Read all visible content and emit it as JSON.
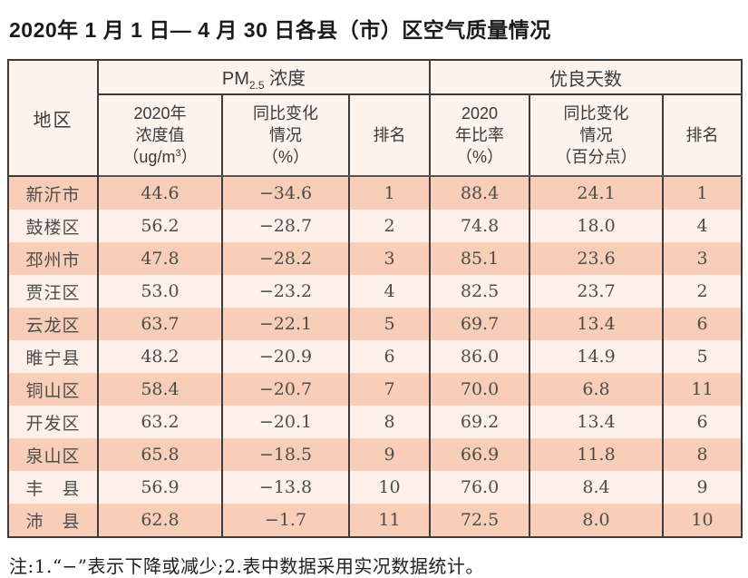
{
  "page": {
    "title": "2020年 1 月 1 日— 4 月 30 日各县（市）区空气质量情况"
  },
  "table": {
    "header": {
      "region": "地区",
      "pm_group": {
        "prefix": "PM",
        "sub": "2.5",
        "suffix": " 浓度"
      },
      "good_group": "优良天数",
      "pm_value": {
        "line1": "2020年",
        "line2": "浓度值",
        "line3_pre": "（ug/m",
        "line3_sup": "3",
        "line3_post": "）"
      },
      "pm_change": {
        "line1": "同比变化",
        "line2": "情况",
        "line3": "（%）"
      },
      "pm_rank": "排名",
      "good_ratio": {
        "line1": "2020",
        "line2": "年比率",
        "line3": "（%）"
      },
      "good_change": {
        "line1": "同比变化",
        "line2": "情况",
        "line3": "（百分点）"
      },
      "good_rank": "排名"
    },
    "rows": [
      [
        "新沂市",
        "44.6",
        "−34.6",
        "1",
        "88.4",
        "24.1",
        "1"
      ],
      [
        "鼓楼区",
        "56.2",
        "−28.7",
        "2",
        "74.8",
        "18.0",
        "4"
      ],
      [
        "邳州市",
        "47.8",
        "−28.2",
        "3",
        "85.1",
        "23.6",
        "3"
      ],
      [
        "贾汪区",
        "53.0",
        "−23.2",
        "4",
        "82.5",
        "23.7",
        "2"
      ],
      [
        "云龙区",
        "63.7",
        "−22.1",
        "5",
        "69.7",
        "13.4",
        "6"
      ],
      [
        "睢宁县",
        "48.2",
        "−20.9",
        "6",
        "86.0",
        "14.9",
        "5"
      ],
      [
        "铜山区",
        "58.4",
        "−20.7",
        "7",
        "70.0",
        "6.8",
        "11"
      ],
      [
        "开发区",
        "63.2",
        "−20.1",
        "8",
        "69.2",
        "13.4",
        "6"
      ],
      [
        "泉山区",
        "65.8",
        "−18.5",
        "9",
        "66.9",
        "11.8",
        "8"
      ],
      [
        "丰　县",
        "56.9",
        "−13.8",
        "10",
        "76.0",
        "8.4",
        "9"
      ],
      [
        "沛　县",
        "62.8",
        "−1.7",
        "11",
        "72.5",
        "8.0",
        "10"
      ]
    ]
  },
  "footnote": "注:1.“−”表示下降或减少;2.表中数据采用实况数据统计。",
  "colors": {
    "row_dark": "#f8ceb8",
    "row_light": "#fdf1e9",
    "header_bg": "#fbf3ec",
    "border": "#3c3c3c"
  }
}
